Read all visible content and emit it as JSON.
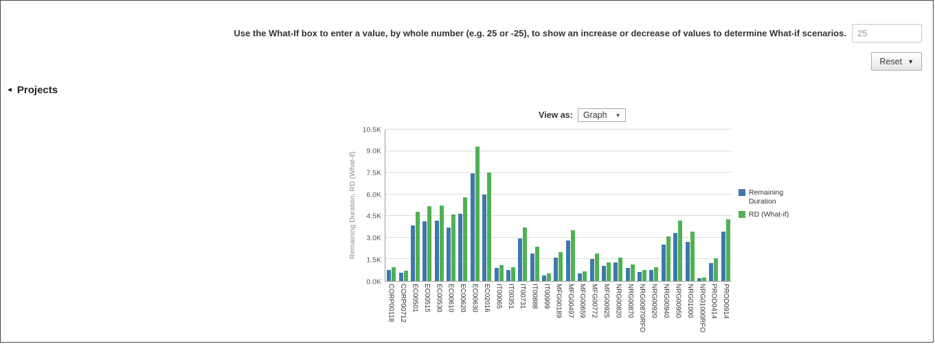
{
  "instruction": {
    "text": "Use the What-If box to enter a value, by whole number (e.g. 25 or -25), to show an increase or decrease of values to determine What-if scenarios.",
    "input_value": "25"
  },
  "reset_button": {
    "label": "Reset",
    "caret": "▼"
  },
  "projects_section": {
    "title": "Projects",
    "collapse_glyph": "◄"
  },
  "view_as": {
    "label": "View as:",
    "selected": "Graph",
    "caret": "▼"
  },
  "chart_data": {
    "type": "bar",
    "title": "",
    "xlabel": "",
    "ylabel": "Remaining Duration, RD (What-if)",
    "unit": "K",
    "ylim": [
      0,
      10.5
    ],
    "yticks": [
      "0.0K",
      "1.5K",
      "3.0K",
      "4.5K",
      "6.0K",
      "7.5K",
      "9.0K",
      "10.5K"
    ],
    "grid": true,
    "legend_position": "right",
    "categories": [
      "CORP00118",
      "CORP00712",
      "EC00501",
      "EC00515",
      "EC00530",
      "EC00610",
      "EC00620",
      "EC00630",
      "EC02016",
      "IT00065",
      "IT00351",
      "IT00731",
      "IT00888",
      "IT00999",
      "MFG00189",
      "MFG00497",
      "MFG00659",
      "MFG00772",
      "MFG00925",
      "NRG00820",
      "NRG00870",
      "NRG00870RFO",
      "NRG00920",
      "NRG00940",
      "NRG00950",
      "NRG01000",
      "NRG01000RFO",
      "PROD0414",
      "PROD0914"
    ],
    "series": [
      {
        "name": "Remaining Duration",
        "color": "#3f77ad",
        "values": [
          0.75,
          0.55,
          3.85,
          4.15,
          4.2,
          3.7,
          4.65,
          7.45,
          6.0,
          0.9,
          0.75,
          2.95,
          1.9,
          0.4,
          1.6,
          2.8,
          0.5,
          1.5,
          1.05,
          1.3,
          0.9,
          0.6,
          0.75,
          2.5,
          3.35,
          2.7,
          0.2,
          1.25,
          3.4
        ]
      },
      {
        "name": "RD (What-if)",
        "color": "#4eb253",
        "values": [
          0.95,
          0.7,
          4.8,
          5.2,
          5.25,
          4.6,
          5.8,
          9.3,
          7.5,
          1.1,
          0.95,
          3.7,
          2.4,
          0.5,
          2.0,
          3.5,
          0.65,
          1.9,
          1.3,
          1.6,
          1.15,
          0.75,
          0.95,
          3.1,
          4.2,
          3.4,
          0.25,
          1.55,
          4.3
        ]
      }
    ]
  }
}
